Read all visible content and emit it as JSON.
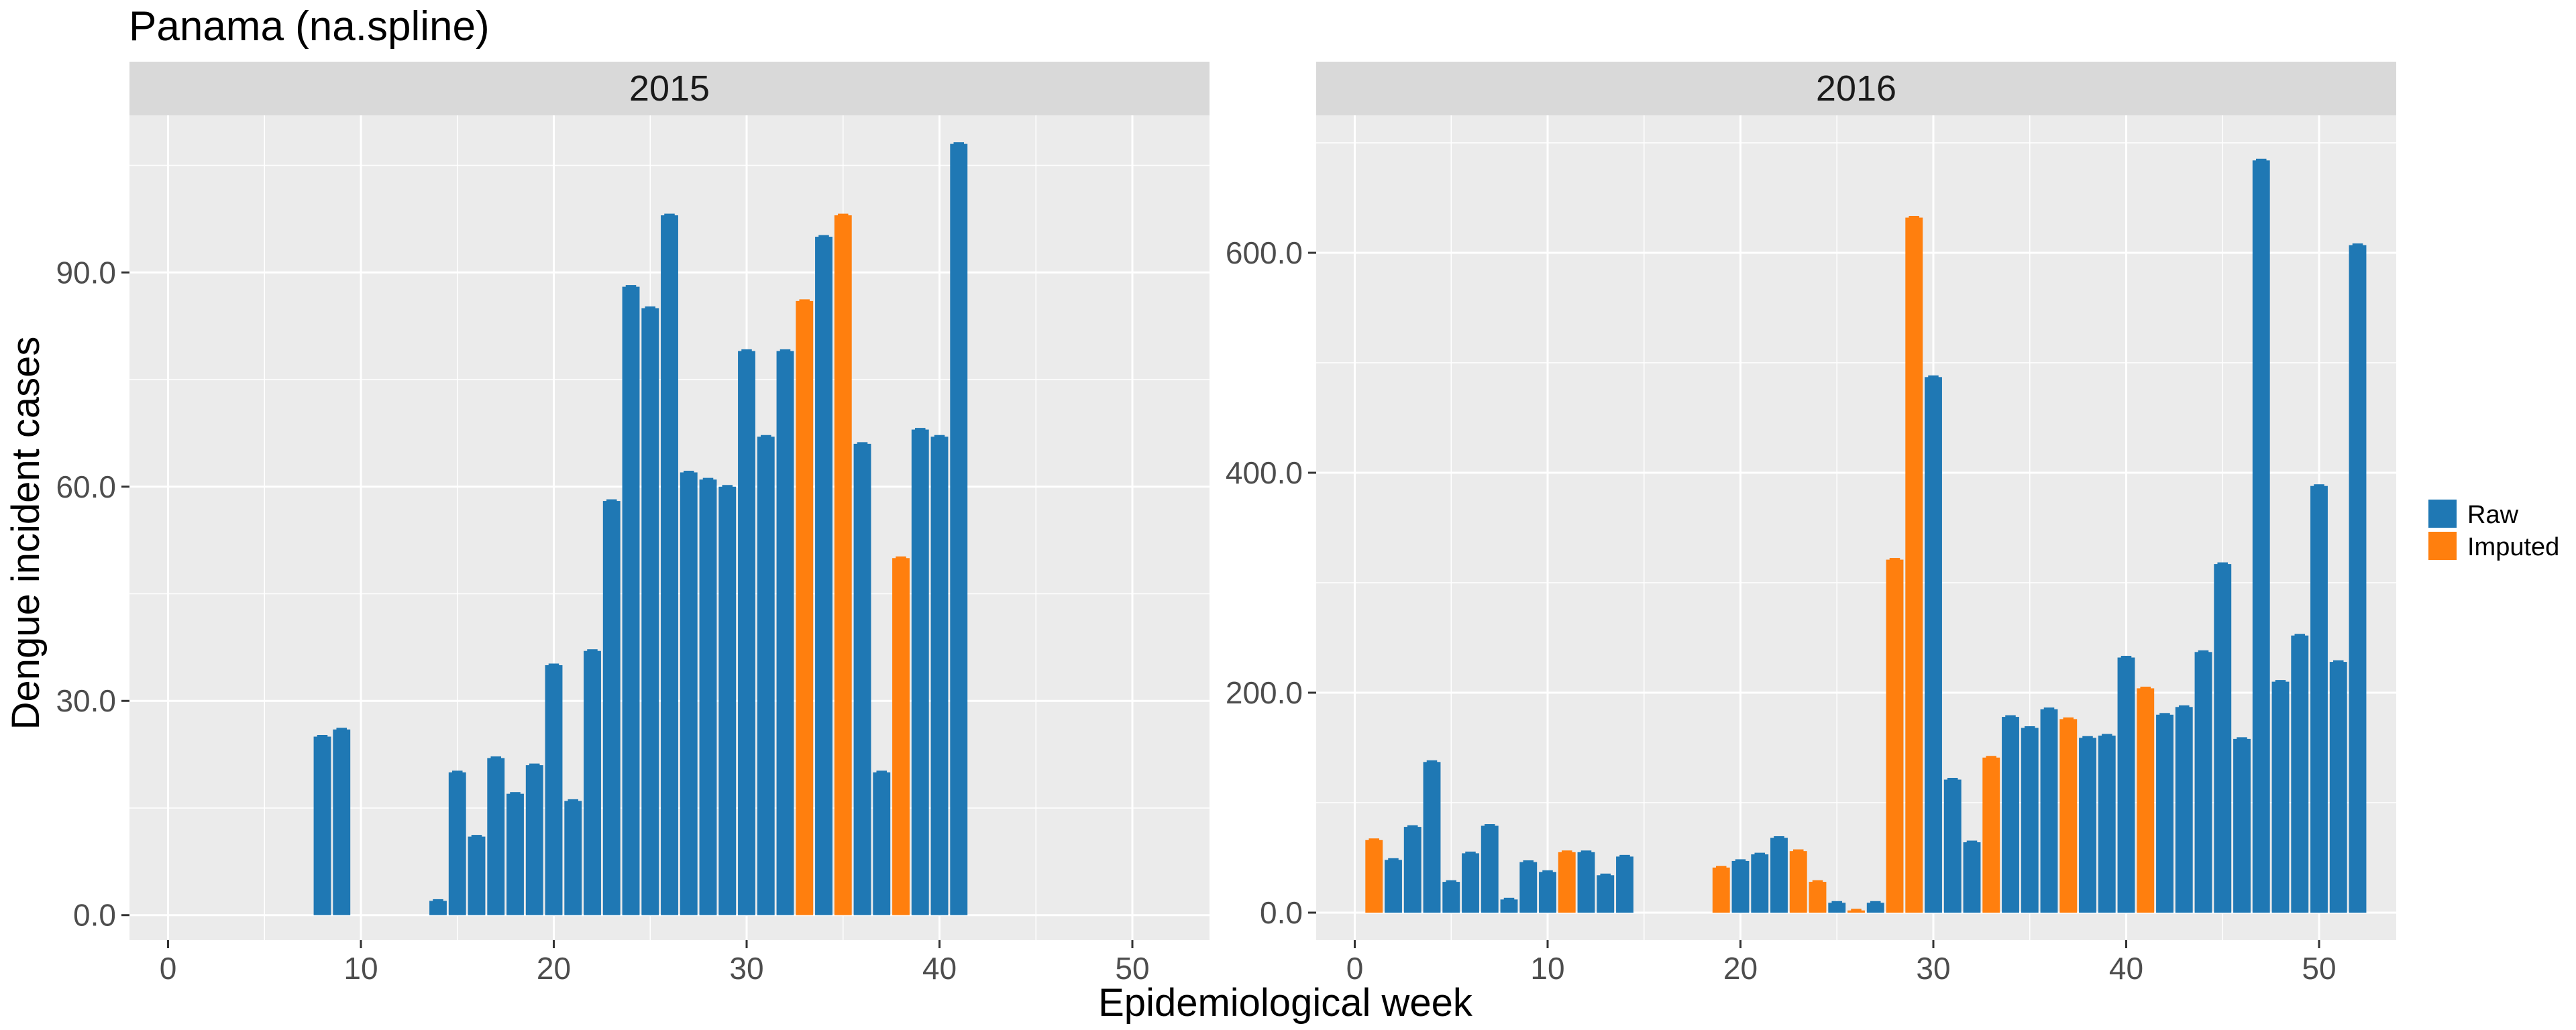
{
  "title": "Panama (na.spline)",
  "xlabel": "Epidemiological week",
  "ylabel": "Dengue incident cases",
  "legend": {
    "placement": "right",
    "items": [
      {
        "label": "Raw",
        "color": "#1F78B4"
      },
      {
        "label": "Imputed",
        "color": "#FF7F0E"
      }
    ]
  },
  "colors": {
    "panel_bg": "#EBEBEB",
    "strip_bg": "#D9D9D9",
    "grid": "#FFFFFF"
  },
  "chart_data": [
    {
      "type": "bar",
      "strip_label": "2015",
      "xlim": [
        -2,
        54
      ],
      "ylim": [
        -3.5,
        112
      ],
      "xticks": [
        0,
        10,
        20,
        30,
        40,
        50
      ],
      "yticks": [
        0,
        30,
        60,
        90
      ],
      "ytick_labels": [
        "0.0",
        "30.0",
        "60.0",
        "90.0"
      ],
      "series": [
        {
          "name": "Raw",
          "color": "#1F78B4",
          "points": [
            [
              8,
              25
            ],
            [
              9,
              26
            ],
            [
              14,
              2
            ],
            [
              15,
              20
            ],
            [
              16,
              11
            ],
            [
              17,
              22
            ],
            [
              18,
              17
            ],
            [
              19,
              21
            ],
            [
              20,
              35
            ],
            [
              21,
              16
            ],
            [
              22,
              37
            ],
            [
              23,
              58
            ],
            [
              24,
              88
            ],
            [
              25,
              85
            ],
            [
              26,
              98
            ],
            [
              27,
              62
            ],
            [
              28,
              61
            ],
            [
              29,
              60
            ],
            [
              30,
              79
            ],
            [
              31,
              67
            ],
            [
              32,
              79
            ],
            [
              34,
              95
            ],
            [
              36,
              66
            ],
            [
              37,
              20
            ],
            [
              39,
              68
            ],
            [
              40,
              67
            ],
            [
              41,
              108
            ]
          ]
        },
        {
          "name": "Imputed",
          "color": "#FF7F0E",
          "points": [
            [
              33,
              86
            ],
            [
              35,
              98
            ],
            [
              38,
              50
            ]
          ]
        }
      ]
    },
    {
      "type": "bar",
      "strip_label": "2016",
      "xlim": [
        -2,
        54
      ],
      "ylim": [
        -25,
        725
      ],
      "xticks": [
        0,
        10,
        20,
        30,
        40,
        50
      ],
      "yticks": [
        0,
        200,
        400,
        600
      ],
      "ytick_labels": [
        "0.0",
        "200.0",
        "400.0",
        "600.0"
      ],
      "series": [
        {
          "name": "Raw",
          "color": "#1F78B4",
          "points": [
            [
              2,
              48
            ],
            [
              3,
              78
            ],
            [
              4,
              137
            ],
            [
              5,
              28
            ],
            [
              6,
              54
            ],
            [
              7,
              79
            ],
            [
              8,
              12
            ],
            [
              9,
              46
            ],
            [
              10,
              37
            ],
            [
              12,
              55
            ],
            [
              13,
              34
            ],
            [
              14,
              51
            ],
            [
              20,
              47
            ],
            [
              21,
              53
            ],
            [
              22,
              68
            ],
            [
              25,
              9
            ],
            [
              27,
              9
            ],
            [
              30,
              487
            ],
            [
              31,
              121
            ],
            [
              32,
              64
            ],
            [
              34,
              178
            ],
            [
              35,
              168
            ],
            [
              36,
              185
            ],
            [
              38,
              159
            ],
            [
              39,
              161
            ],
            [
              40,
              232
            ],
            [
              42,
              180
            ],
            [
              43,
              187
            ],
            [
              44,
              237
            ],
            [
              45,
              317
            ],
            [
              46,
              158
            ],
            [
              47,
              684
            ],
            [
              48,
              210
            ],
            [
              49,
              252
            ],
            [
              50,
              388
            ],
            [
              51,
              228
            ],
            [
              52,
              607
            ]
          ]
        },
        {
          "name": "Imputed",
          "color": "#FF7F0E",
          "points": [
            [
              1,
              66
            ],
            [
              11,
              55
            ],
            [
              19,
              41
            ],
            [
              23,
              56
            ],
            [
              24,
              28
            ],
            [
              26,
              2
            ],
            [
              28,
              321
            ],
            [
              29,
              632
            ],
            [
              33,
              141
            ],
            [
              37,
              176
            ],
            [
              41,
              204
            ]
          ]
        }
      ]
    }
  ]
}
